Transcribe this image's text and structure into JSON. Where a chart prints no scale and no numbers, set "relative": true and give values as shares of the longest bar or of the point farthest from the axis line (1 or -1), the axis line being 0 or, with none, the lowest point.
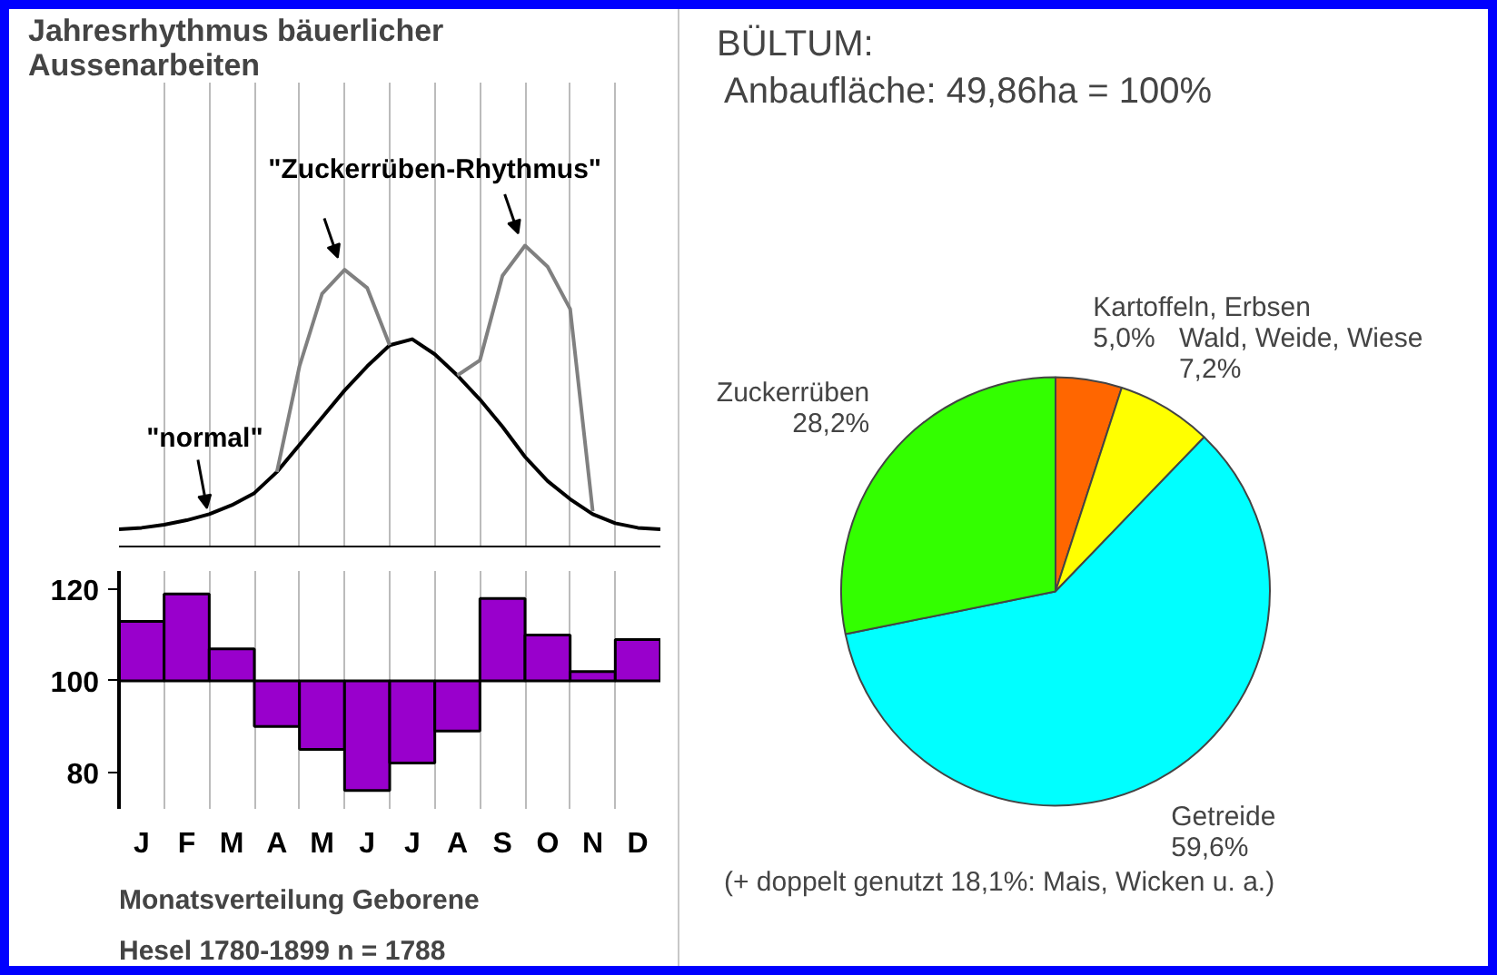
{
  "chart_data": [
    {
      "type": "line",
      "title": "Jahresrhythmus bäuerlicher Aussenarbeiten",
      "relative": true,
      "tick_labels": false,
      "grid": "x",
      "categories": [
        null,
        null,
        null,
        null,
        null,
        null,
        null,
        null,
        null,
        null,
        null,
        null,
        null,
        null,
        null,
        null,
        null,
        null,
        null,
        null,
        null,
        null,
        null,
        null,
        null
      ],
      "series": [
        {
          "name": "\"normal\"",
          "color": "#000000",
          "values": [
            0.06,
            0.065,
            0.075,
            0.09,
            0.11,
            0.14,
            0.18,
            0.25,
            0.34,
            0.43,
            0.52,
            0.6,
            0.67,
            0.69,
            0.64,
            0.57,
            0.49,
            0.4,
            0.3,
            0.22,
            0.16,
            0.11,
            0.08,
            0.065,
            0.06
          ]
        },
        {
          "name": "\"Zuckerrüben-Rhythmus\"",
          "color": "#808080",
          "values": [
            null,
            null,
            null,
            null,
            null,
            null,
            null,
            0.25,
            0.6,
            0.84,
            0.92,
            0.86,
            0.67,
            null,
            null,
            null,
            null,
            null,
            null,
            null,
            null,
            null,
            null,
            null,
            null
          ]
        },
        {
          "color": "#808080",
          "values": [
            null,
            null,
            null,
            null,
            null,
            null,
            null,
            null,
            null,
            null,
            null,
            null,
            null,
            null,
            null,
            0.57,
            0.62,
            0.9,
            1.0,
            0.93,
            0.79,
            0.12,
            null,
            null,
            null
          ]
        }
      ]
    },
    {
      "type": "bar",
      "categories": [
        "J",
        "F",
        "M",
        "A",
        "M",
        "J",
        "J",
        "A",
        "S",
        "O",
        "N",
        "D"
      ],
      "values": [
        13,
        19,
        7,
        -10,
        -15,
        -24,
        -18,
        -11,
        18,
        10,
        2,
        9
      ],
      "base": [
        100,
        100,
        100,
        100,
        100,
        100,
        100,
        100,
        100,
        100,
        100,
        100
      ],
      "color": "#9900cc",
      "ylim": [
        72,
        124
      ],
      "yticks": [
        80,
        100,
        120
      ],
      "grid": "x",
      "annotations": [
        "Monatsverteilung Geborene",
        "Hesel 1780-1899  n = 1788"
      ]
    },
    {
      "type": "pie",
      "title": "BÜLTUM:",
      "subtitle": "Anbaufläche: 49,86ha = 100%",
      "categories": [
        "Kartoffeln, Erbsen",
        "Wald, Weide, Wiese",
        "Getreide",
        "Zuckerrüben"
      ],
      "values": [
        5.0,
        7.2,
        59.6,
        28.2
      ],
      "colors": [
        "#ff6600",
        "#ffff00",
        "#00ffff",
        "#33ff00"
      ],
      "value_labels": [
        "5,0%",
        "7,2%",
        "59,6%",
        "28,2%"
      ],
      "annotations": [
        "(+ doppelt genutzt 18,1%: Mais, Wicken u. a.)"
      ]
    }
  ]
}
